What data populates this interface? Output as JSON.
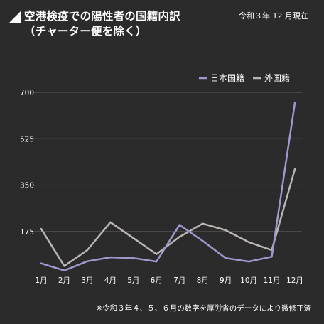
{
  "header": {
    "title_line1": "空港検疫での陽性者の国籍内訳",
    "title_line2": "（チャーター便を除く）",
    "date_note": "令和３年 12 月現在"
  },
  "footnote": "※令和３年４、５、６月の数字を厚労省のデータにより微修正済",
  "colors": {
    "background": "#2b2b2b",
    "japanese_line": "#9f98cf",
    "foreign_line": "#bdb5b1",
    "grid": "#5a5a5a"
  },
  "chart_data": {
    "type": "line",
    "title": "空港検疫での陽性者の国籍内訳（チャーター便を除く）",
    "categories": [
      "1月",
      "2月",
      "3月",
      "4月",
      "5月",
      "6月",
      "7月",
      "8月",
      "9月",
      "10月",
      "11月",
      "12月"
    ],
    "y_ticks": [
      175,
      350,
      525,
      700
    ],
    "ylim": [
      30,
      700
    ],
    "grid": true,
    "legend": "top-right",
    "series": [
      {
        "name": "日本国籍",
        "color": "#9f98cf",
        "values": [
          55,
          28,
          63,
          78,
          75,
          62,
          200,
          140,
          75,
          62,
          80,
          660
        ]
      },
      {
        "name": "外国籍",
        "color": "#bdb5b1",
        "values": [
          185,
          45,
          105,
          210,
          150,
          90,
          155,
          205,
          180,
          135,
          105,
          410
        ]
      }
    ]
  }
}
